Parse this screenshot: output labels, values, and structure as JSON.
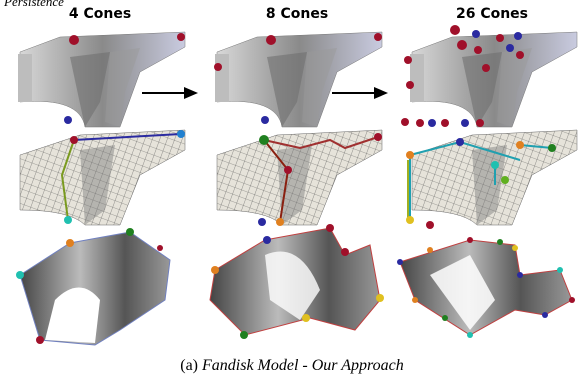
{
  "header": {
    "fragment": "Persistence",
    "columns": [
      "4 Cones",
      "8 Cones",
      "26 Cones"
    ]
  },
  "caption": {
    "label": "(a)",
    "text": "Fandisk Model - Our Approach"
  }
}
